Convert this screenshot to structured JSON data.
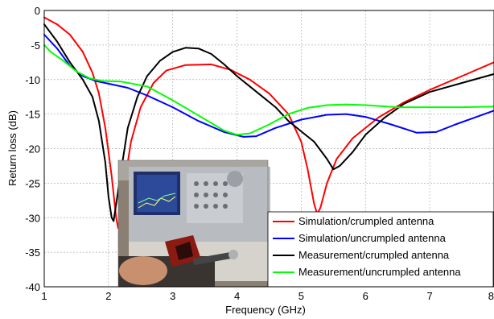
{
  "chart_data": {
    "type": "line",
    "xlabel": "Frequency (GHz)",
    "ylabel": "Return loss (dB)",
    "xlim": [
      1,
      8
    ],
    "ylim": [
      -40,
      0
    ],
    "xticks": [
      1,
      2,
      3,
      4,
      5,
      6,
      7,
      8
    ],
    "yticks": [
      0,
      -5,
      -10,
      -15,
      -20,
      -25,
      -30,
      -35,
      -40
    ],
    "grid": true,
    "legend_position": "bottom-right",
    "inset_photo": "measurement setup: network analyzer with crumpled antenna",
    "series": [
      {
        "name": "Simulation/crumpled antenna",
        "color": "#ff0000",
        "points": [
          [
            1,
            -1
          ],
          [
            1.2,
            -2
          ],
          [
            1.4,
            -3.5
          ],
          [
            1.6,
            -6
          ],
          [
            1.75,
            -9
          ],
          [
            1.85,
            -12
          ],
          [
            1.95,
            -17
          ],
          [
            2.05,
            -24
          ],
          [
            2.12,
            -30
          ],
          [
            2.15,
            -31.5
          ],
          [
            2.2,
            -29
          ],
          [
            2.25,
            -25
          ],
          [
            2.35,
            -19
          ],
          [
            2.5,
            -14
          ],
          [
            2.7,
            -10.5
          ],
          [
            2.9,
            -8.7
          ],
          [
            3.2,
            -7.9
          ],
          [
            3.6,
            -7.8
          ],
          [
            3.9,
            -8.6
          ],
          [
            4.2,
            -10
          ],
          [
            4.5,
            -12
          ],
          [
            4.8,
            -15
          ],
          [
            5,
            -19
          ],
          [
            5.1,
            -23
          ],
          [
            5.2,
            -28
          ],
          [
            5.25,
            -29.5
          ],
          [
            5.3,
            -28.5
          ],
          [
            5.4,
            -25
          ],
          [
            5.55,
            -21.5
          ],
          [
            5.8,
            -18.5
          ],
          [
            6.2,
            -15.5
          ],
          [
            6.6,
            -13.3
          ],
          [
            7,
            -11.5
          ],
          [
            7.5,
            -9.5
          ],
          [
            8,
            -7.5
          ]
        ]
      },
      {
        "name": "Simulation/uncrumpled antenna",
        "color": "#0000ff",
        "points": [
          [
            1,
            -3.5
          ],
          [
            1.2,
            -5.5
          ],
          [
            1.4,
            -8
          ],
          [
            1.6,
            -9.5
          ],
          [
            1.8,
            -10.2
          ],
          [
            2,
            -10.6
          ],
          [
            2.3,
            -11.2
          ],
          [
            2.6,
            -12.3
          ],
          [
            3,
            -14
          ],
          [
            3.4,
            -16
          ],
          [
            3.8,
            -17.6
          ],
          [
            4.1,
            -18.3
          ],
          [
            4.3,
            -18.2
          ],
          [
            4.6,
            -17
          ],
          [
            5,
            -15.8
          ],
          [
            5.4,
            -15.1
          ],
          [
            5.7,
            -15
          ],
          [
            6,
            -15.4
          ],
          [
            6.4,
            -16.5
          ],
          [
            6.8,
            -17.7
          ],
          [
            7.1,
            -17.6
          ],
          [
            7.4,
            -16.5
          ],
          [
            7.7,
            -15.5
          ],
          [
            8,
            -14.5
          ]
        ]
      },
      {
        "name": "Measurement/crumpled antenna",
        "color": "#000000",
        "points": [
          [
            1,
            -2
          ],
          [
            1.2,
            -4.5
          ],
          [
            1.4,
            -7.5
          ],
          [
            1.6,
            -10
          ],
          [
            1.75,
            -12.5
          ],
          [
            1.85,
            -16
          ],
          [
            1.95,
            -22
          ],
          [
            2,
            -27
          ],
          [
            2.05,
            -30
          ],
          [
            2.08,
            -30.5
          ],
          [
            2.12,
            -28
          ],
          [
            2.2,
            -23
          ],
          [
            2.3,
            -17
          ],
          [
            2.45,
            -12.5
          ],
          [
            2.6,
            -9.5
          ],
          [
            2.8,
            -7.3
          ],
          [
            3,
            -6
          ],
          [
            3.2,
            -5.4
          ],
          [
            3.4,
            -5.5
          ],
          [
            3.6,
            -6.3
          ],
          [
            3.8,
            -7.8
          ],
          [
            4,
            -9.5
          ],
          [
            4.2,
            -11
          ],
          [
            4.4,
            -12.5
          ],
          [
            4.6,
            -14
          ],
          [
            4.8,
            -16
          ],
          [
            5,
            -17.5
          ],
          [
            5.2,
            -19
          ],
          [
            5.4,
            -21.5
          ],
          [
            5.5,
            -23
          ],
          [
            5.6,
            -22.5
          ],
          [
            5.8,
            -20.5
          ],
          [
            6,
            -18
          ],
          [
            6.3,
            -15.5
          ],
          [
            6.6,
            -13.5
          ],
          [
            7,
            -11.8
          ],
          [
            7.5,
            -10.5
          ],
          [
            8,
            -9.2
          ]
        ]
      },
      {
        "name": "Measurement/uncrumpled antenna",
        "color": "#00ff00",
        "points": [
          [
            1,
            -5
          ],
          [
            1.1,
            -6
          ],
          [
            1.3,
            -7.3
          ],
          [
            1.5,
            -8.8
          ],
          [
            1.7,
            -9.8
          ],
          [
            1.9,
            -10.2
          ],
          [
            2.2,
            -10.3
          ],
          [
            2.6,
            -11
          ],
          [
            3,
            -13
          ],
          [
            3.4,
            -15.2
          ],
          [
            3.8,
            -17.4
          ],
          [
            4,
            -18
          ],
          [
            4.2,
            -17.8
          ],
          [
            4.5,
            -16.5
          ],
          [
            4.8,
            -15
          ],
          [
            5.1,
            -14.1
          ],
          [
            5.4,
            -13.7
          ],
          [
            5.7,
            -13.6
          ],
          [
            6,
            -13.7
          ],
          [
            6.5,
            -14
          ],
          [
            7,
            -14
          ],
          [
            7.5,
            -14
          ],
          [
            8,
            -13.9
          ]
        ]
      }
    ]
  }
}
